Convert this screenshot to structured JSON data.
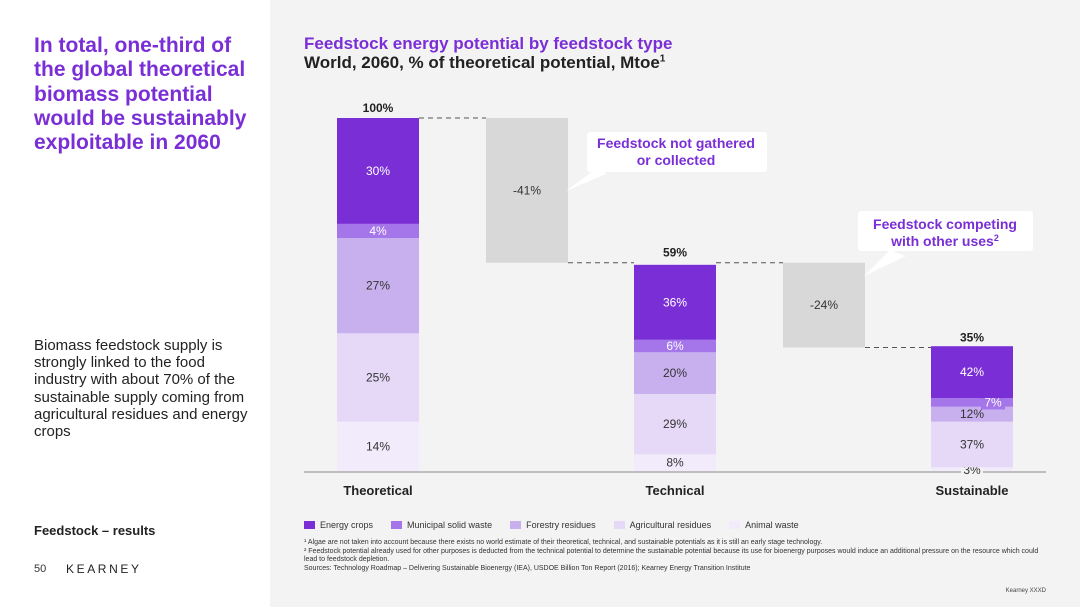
{
  "left": {
    "headline": "In total, one-third of the global theoretical biomass potential would be sustainably exploitable in 2060",
    "body": "Biomass feedstock supply is strongly linked to the food industry with about 70% of the sustainable supply coming from agricultural residues and energy crops",
    "section_label": "Feedstock – results",
    "page_number": "50",
    "brand": "KEARNEY"
  },
  "chart_data": {
    "type": "bar",
    "title": "Feedstock energy potential by feedstock type",
    "subtitle": "World, 2060, % of theoretical potential, Mtoe",
    "subtitle_sup": "1",
    "stack_order": [
      "Animal waste",
      "Agricultural residues",
      "Forestry residues",
      "Municipal solid waste",
      "Energy crops"
    ],
    "categories": [
      "Theoretical",
      "Technical",
      "Sustainable"
    ],
    "totals": [
      100,
      59,
      35
    ],
    "total_labels": [
      "100%",
      "59%",
      "35%"
    ],
    "series": [
      {
        "name": "Energy crops",
        "color": "#7a2fd6",
        "label_color": "#ffffff",
        "shares": [
          30,
          36,
          42
        ]
      },
      {
        "name": "Municipal solid waste",
        "color": "#a575ea",
        "label_color": "#ffffff",
        "shares": [
          4,
          6,
          7
        ]
      },
      {
        "name": "Forestry residues",
        "color": "#c8b0ef",
        "label_color": "#333333",
        "shares": [
          27,
          20,
          12
        ]
      },
      {
        "name": "Agricultural residues",
        "color": "#e5d9f7",
        "label_color": "#333333",
        "shares": [
          25,
          29,
          37
        ]
      },
      {
        "name": "Animal waste",
        "color": "#f1ebfb",
        "label_color": "#333333",
        "shares": [
          14,
          8,
          3
        ]
      }
    ],
    "segment_labels": [
      [
        "30%",
        "4%",
        "27%",
        "25%",
        "14%"
      ],
      [
        "36%",
        "6%",
        "20%",
        "29%",
        "8%"
      ],
      [
        "42%",
        "7%",
        "12%",
        "37%",
        "3%"
      ]
    ],
    "waterfall_drops": [
      {
        "value": -41,
        "label": "-41%",
        "from_total": 100,
        "to_total": 59
      },
      {
        "value": -24,
        "label": "-24%",
        "from_total": 59,
        "to_total": 35
      }
    ],
    "callouts": [
      {
        "text_line1": "Feedstock not gathered",
        "text_line2": "or collected",
        "sup": ""
      },
      {
        "text_line1": "Feedstock competing",
        "text_line2": "with other uses",
        "sup": "2"
      }
    ],
    "ylim": [
      0,
      100
    ],
    "colors": {
      "accent": "#7a2fd6",
      "drop": "#d8d8d8",
      "axis": "#888888",
      "dash": "#555555"
    }
  },
  "legend": [
    {
      "label": "Energy crops",
      "color": "#7a2fd6"
    },
    {
      "label": "Municipal solid waste",
      "color": "#a575ea"
    },
    {
      "label": "Forestry residues",
      "color": "#c8b0ef"
    },
    {
      "label": "Agricultural residues",
      "color": "#e5d9f7"
    },
    {
      "label": "Animal waste",
      "color": "#f1ebfb"
    }
  ],
  "footnotes": {
    "f1": "¹ Algae are not taken into account because there exists no world estimate of their theoretical, technical, and sustainable potentials as it is still an early stage technology.",
    "f2": "² Feedstock potential already used for other purposes is deducted from the technical potential to determine the sustainable potential because its use for bioenergy purposes would induce an additional pressure on the resource which could lead to feedstock depletion.",
    "sources": "Sources: Technology Roadmap – Delivering Sustainable Bioenergy (IEA), USDOE Billion Ton Report (2016); Kearney Energy Transition Institute"
  },
  "copyright": "Kearney XXXD"
}
